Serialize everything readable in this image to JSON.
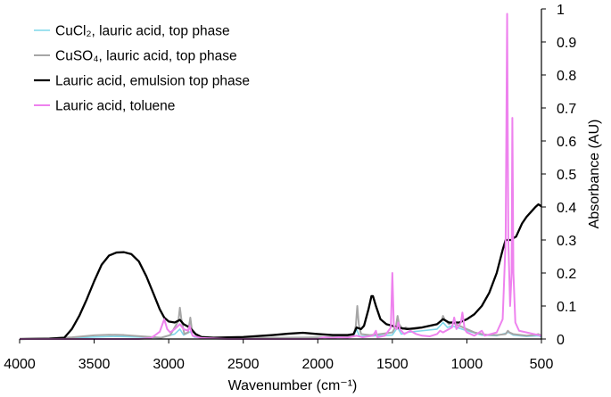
{
  "chart_data": {
    "type": "line",
    "title": "",
    "xlabel": "Wavenumber (cm⁻¹)",
    "ylabel": "Absorbance (AU)",
    "xlim": [
      4000,
      500
    ],
    "ylim": [
      0,
      1
    ],
    "x_reversed": true,
    "y_axis_side": "right",
    "grid": false,
    "legend_position": "top-left",
    "x_ticks": [
      4000,
      3500,
      3000,
      2500,
      2000,
      1500,
      1000,
      500
    ],
    "y_ticks": [
      0,
      0.1,
      0.2,
      0.3,
      0.4,
      0.5,
      0.6,
      0.7,
      0.8,
      0.9,
      1
    ],
    "series": [
      {
        "name": "CuCl₂, lauric acid, top phase",
        "color": "#7fd7ea",
        "width": 1.6,
        "points": [
          [
            4000,
            0
          ],
          [
            3700,
            0.002
          ],
          [
            3500,
            0.006
          ],
          [
            3350,
            0.008
          ],
          [
            3200,
            0.006
          ],
          [
            3050,
            0.004
          ],
          [
            2960,
            0.015
          ],
          [
            2925,
            0.03
          ],
          [
            2900,
            0.012
          ],
          [
            2855,
            0.022
          ],
          [
            2830,
            0.006
          ],
          [
            2700,
            0.002
          ],
          [
            2200,
            0.003
          ],
          [
            2000,
            0.005
          ],
          [
            1760,
            0.008
          ],
          [
            1740,
            0.03
          ],
          [
            1720,
            0.008
          ],
          [
            1600,
            0.01
          ],
          [
            1500,
            0.012
          ],
          [
            1465,
            0.035
          ],
          [
            1440,
            0.015
          ],
          [
            1400,
            0.02
          ],
          [
            1300,
            0.025
          ],
          [
            1200,
            0.03
          ],
          [
            1160,
            0.05
          ],
          [
            1130,
            0.035
          ],
          [
            1100,
            0.04
          ],
          [
            1000,
            0.025
          ],
          [
            900,
            0.012
          ],
          [
            800,
            0.01
          ],
          [
            720,
            0.02
          ],
          [
            690,
            0.012
          ],
          [
            600,
            0.008
          ],
          [
            520,
            0.01
          ],
          [
            500,
            0.006
          ]
        ]
      },
      {
        "name": "CuSO₄, lauric acid, top phase",
        "color": "#a6a6a6",
        "width": 2,
        "points": [
          [
            4000,
            0
          ],
          [
            3800,
            0.002
          ],
          [
            3650,
            0.005
          ],
          [
            3500,
            0.011
          ],
          [
            3400,
            0.013
          ],
          [
            3300,
            0.012
          ],
          [
            3150,
            0.007
          ],
          [
            3050,
            0.004
          ],
          [
            2990,
            0.012
          ],
          [
            2960,
            0.035
          ],
          [
            2935,
            0.055
          ],
          [
            2925,
            0.095
          ],
          [
            2915,
            0.06
          ],
          [
            2895,
            0.015
          ],
          [
            2870,
            0.02
          ],
          [
            2855,
            0.065
          ],
          [
            2845,
            0.03
          ],
          [
            2800,
            0.005
          ],
          [
            2700,
            0.002
          ],
          [
            2200,
            0.004
          ],
          [
            2000,
            0.005
          ],
          [
            1800,
            0.007
          ],
          [
            1760,
            0.012
          ],
          [
            1745,
            0.04
          ],
          [
            1735,
            0.1
          ],
          [
            1725,
            0.045
          ],
          [
            1710,
            0.015
          ],
          [
            1650,
            0.012
          ],
          [
            1600,
            0.014
          ],
          [
            1500,
            0.02
          ],
          [
            1475,
            0.04
          ],
          [
            1465,
            0.07
          ],
          [
            1455,
            0.045
          ],
          [
            1430,
            0.03
          ],
          [
            1410,
            0.035
          ],
          [
            1380,
            0.03
          ],
          [
            1350,
            0.03
          ],
          [
            1300,
            0.035
          ],
          [
            1250,
            0.04
          ],
          [
            1200,
            0.045
          ],
          [
            1170,
            0.055
          ],
          [
            1160,
            0.07
          ],
          [
            1150,
            0.06
          ],
          [
            1120,
            0.045
          ],
          [
            1100,
            0.05
          ],
          [
            1050,
            0.04
          ],
          [
            1000,
            0.03
          ],
          [
            950,
            0.02
          ],
          [
            900,
            0.015
          ],
          [
            850,
            0.012
          ],
          [
            800,
            0.012
          ],
          [
            740,
            0.015
          ],
          [
            725,
            0.025
          ],
          [
            715,
            0.02
          ],
          [
            690,
            0.015
          ],
          [
            600,
            0.01
          ],
          [
            550,
            0.012
          ],
          [
            520,
            0.015
          ],
          [
            500,
            0.01
          ]
        ]
      },
      {
        "name": "Lauric acid, emulsion top phase",
        "color": "#000000",
        "width": 2.3,
        "points": [
          [
            4000,
            0
          ],
          [
            3800,
            0.001
          ],
          [
            3700,
            0.004
          ],
          [
            3650,
            0.03
          ],
          [
            3600,
            0.07
          ],
          [
            3550,
            0.12
          ],
          [
            3500,
            0.175
          ],
          [
            3450,
            0.225
          ],
          [
            3400,
            0.253
          ],
          [
            3350,
            0.262
          ],
          [
            3300,
            0.263
          ],
          [
            3250,
            0.257
          ],
          [
            3200,
            0.235
          ],
          [
            3150,
            0.19
          ],
          [
            3100,
            0.135
          ],
          [
            3060,
            0.09
          ],
          [
            3030,
            0.065
          ],
          [
            3000,
            0.053
          ],
          [
            2960,
            0.05
          ],
          [
            2925,
            0.058
          ],
          [
            2900,
            0.045
          ],
          [
            2860,
            0.035
          ],
          [
            2820,
            0.015
          ],
          [
            2780,
            0.006
          ],
          [
            2700,
            0.004
          ],
          [
            2500,
            0.006
          ],
          [
            2300,
            0.012
          ],
          [
            2200,
            0.016
          ],
          [
            2100,
            0.019
          ],
          [
            2000,
            0.015
          ],
          [
            1900,
            0.012
          ],
          [
            1800,
            0.012
          ],
          [
            1760,
            0.015
          ],
          [
            1740,
            0.035
          ],
          [
            1710,
            0.03
          ],
          [
            1690,
            0.04
          ],
          [
            1660,
            0.09
          ],
          [
            1640,
            0.13
          ],
          [
            1630,
            0.13
          ],
          [
            1610,
            0.1
          ],
          [
            1580,
            0.06
          ],
          [
            1540,
            0.045
          ],
          [
            1500,
            0.04
          ],
          [
            1470,
            0.035
          ],
          [
            1400,
            0.03
          ],
          [
            1300,
            0.035
          ],
          [
            1200,
            0.045
          ],
          [
            1160,
            0.06
          ],
          [
            1120,
            0.05
          ],
          [
            1050,
            0.05
          ],
          [
            1000,
            0.06
          ],
          [
            950,
            0.075
          ],
          [
            900,
            0.1
          ],
          [
            850,
            0.14
          ],
          [
            800,
            0.2
          ],
          [
            760,
            0.27
          ],
          [
            740,
            0.3
          ],
          [
            720,
            0.3
          ],
          [
            700,
            0.3
          ],
          [
            690,
            0.305
          ],
          [
            670,
            0.31
          ],
          [
            650,
            0.33
          ],
          [
            630,
            0.35
          ],
          [
            600,
            0.37
          ],
          [
            570,
            0.385
          ],
          [
            540,
            0.4
          ],
          [
            520,
            0.408
          ],
          [
            500,
            0.402
          ]
        ]
      },
      {
        "name": "Lauric acid, toluene",
        "color": "#ee82ee",
        "width": 2,
        "points": [
          [
            4000,
            0
          ],
          [
            3200,
            0
          ],
          [
            3120,
            0.003
          ],
          [
            3090,
            0.012
          ],
          [
            3060,
            0.022
          ],
          [
            3030,
            0.06
          ],
          [
            3010,
            0.03
          ],
          [
            2990,
            0.02
          ],
          [
            2960,
            0.03
          ],
          [
            2925,
            0.045
          ],
          [
            2900,
            0.03
          ],
          [
            2870,
            0.025
          ],
          [
            2860,
            0.04
          ],
          [
            2840,
            0.01
          ],
          [
            2780,
            0.003
          ],
          [
            2600,
            0
          ],
          [
            2000,
            0
          ],
          [
            1960,
            0.005
          ],
          [
            1900,
            0.003
          ],
          [
            1860,
            0.005
          ],
          [
            1800,
            0.004
          ],
          [
            1740,
            0.01
          ],
          [
            1700,
            0.005
          ],
          [
            1630,
            0.01
          ],
          [
            1610,
            0.025
          ],
          [
            1600,
            0.005
          ],
          [
            1550,
            0.01
          ],
          [
            1510,
            0.035
          ],
          [
            1500,
            0.2
          ],
          [
            1490,
            0.04
          ],
          [
            1470,
            0.03
          ],
          [
            1460,
            0.05
          ],
          [
            1450,
            0.03
          ],
          [
            1420,
            0.015
          ],
          [
            1380,
            0.025
          ],
          [
            1340,
            0.015
          ],
          [
            1300,
            0.01
          ],
          [
            1250,
            0.008
          ],
          [
            1200,
            0.015
          ],
          [
            1180,
            0.025
          ],
          [
            1160,
            0.02
          ],
          [
            1100,
            0.035
          ],
          [
            1085,
            0.065
          ],
          [
            1070,
            0.03
          ],
          [
            1040,
            0.05
          ],
          [
            1030,
            0.08
          ],
          [
            1015,
            0.03
          ],
          [
            1000,
            0.02
          ],
          [
            950,
            0.01
          ],
          [
            900,
            0.025
          ],
          [
            880,
            0.01
          ],
          [
            800,
            0.02
          ],
          [
            760,
            0.06
          ],
          [
            740,
            0.3
          ],
          [
            730,
            0.985
          ],
          [
            722,
            0.3
          ],
          [
            710,
            0.1
          ],
          [
            700,
            0.2
          ],
          [
            695,
            0.67
          ],
          [
            688,
            0.2
          ],
          [
            675,
            0.05
          ],
          [
            650,
            0.025
          ],
          [
            600,
            0.02
          ],
          [
            550,
            0.015
          ],
          [
            500,
            0.01
          ]
        ]
      }
    ]
  }
}
